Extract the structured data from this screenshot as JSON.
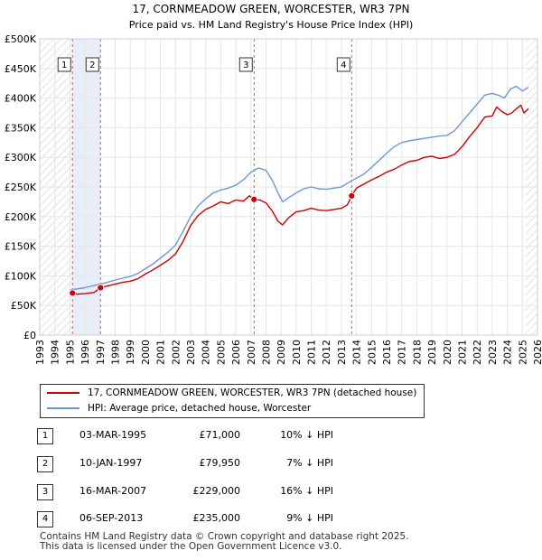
{
  "chart_data": {
    "type": "line",
    "title": "17, CORNMEADOW GREEN, WORCESTER, WR3 7PN",
    "subtitle": "Price paid vs. HM Land Registry's House Price Index (HPI)",
    "xlim": [
      1993,
      2026
    ],
    "ylim": [
      0,
      500000
    ],
    "y_ticks": [
      0,
      50000,
      100000,
      150000,
      200000,
      250000,
      300000,
      350000,
      400000,
      450000,
      500000
    ],
    "y_tick_labels": [
      "£0",
      "£50K",
      "£100K",
      "£150K",
      "£200K",
      "£250K",
      "£300K",
      "£350K",
      "£400K",
      "£450K",
      "£500K"
    ],
    "x_ticks": [
      1993,
      1994,
      1995,
      1996,
      1997,
      1998,
      1999,
      2000,
      2001,
      2002,
      2003,
      2004,
      2005,
      2006,
      2007,
      2008,
      2009,
      2010,
      2011,
      2012,
      2013,
      2014,
      2015,
      2016,
      2017,
      2018,
      2019,
      2020,
      2021,
      2022,
      2023,
      2024,
      2025,
      2026
    ],
    "x_tick_labels": [
      "1993",
      "1994",
      "1995",
      "1996",
      "1997",
      "1998",
      "1999",
      "2000",
      "2001",
      "2002",
      "2003",
      "2004",
      "2005",
      "2006",
      "2007",
      "2008",
      "2009",
      "2010",
      "2011",
      "2012",
      "2013",
      "2014",
      "2015",
      "2016",
      "2017",
      "2018",
      "2019",
      "2020",
      "2021",
      "2022",
      "2023",
      "2024",
      "2025",
      "2026"
    ],
    "shaded_ranges": [
      [
        1995.17,
        1997.03
      ]
    ],
    "hatched_ranges": [
      [
        1993,
        1995.17
      ],
      [
        2025.2,
        2026
      ]
    ],
    "series": [
      {
        "name": "17, CORNMEADOW GREEN, WORCESTER, WR3 7PN (detached house)",
        "color": "#cc0000",
        "x": [
          1995.17,
          1995.5,
          1996.0,
          1996.6,
          1997.03,
          1997.5,
          1998.0,
          1998.5,
          1999.0,
          1999.5,
          2000.0,
          2000.5,
          2001.0,
          2001.5,
          2002.0,
          2002.5,
          2003.0,
          2003.5,
          2004.0,
          2004.5,
          2005.0,
          2005.5,
          2006.0,
          2006.5,
          2006.9,
          2007.21,
          2007.6,
          2008.0,
          2008.4,
          2008.8,
          2009.1,
          2009.5,
          2010.0,
          2010.5,
          2011.0,
          2011.5,
          2012.0,
          2012.5,
          2013.0,
          2013.4,
          2013.68,
          2014.0,
          2014.5,
          2015.0,
          2015.5,
          2016.0,
          2016.5,
          2017.0,
          2017.5,
          2018.0,
          2018.5,
          2019.0,
          2019.5,
          2020.0,
          2020.5,
          2021.0,
          2021.5,
          2022.0,
          2022.5,
          2023.0,
          2023.3,
          2023.6,
          2024.0,
          2024.3,
          2024.6,
          2024.9,
          2025.1,
          2025.4
        ],
        "values": [
          71000,
          69000,
          70000,
          72000,
          79950,
          83000,
          86000,
          89000,
          91000,
          95000,
          103000,
          110000,
          118000,
          126000,
          137000,
          158000,
          185000,
          202000,
          212000,
          218000,
          225000,
          222000,
          228000,
          226000,
          235000,
          229000,
          228000,
          223000,
          210000,
          192000,
          186000,
          198000,
          208000,
          210000,
          214000,
          211000,
          210000,
          212000,
          214000,
          220000,
          235000,
          248000,
          255000,
          262000,
          268000,
          275000,
          280000,
          287000,
          293000,
          295000,
          300000,
          302000,
          298000,
          300000,
          305000,
          318000,
          335000,
          350000,
          368000,
          370000,
          385000,
          378000,
          372000,
          375000,
          382000,
          388000,
          375000,
          382000
        ]
      },
      {
        "name": "HPI: Average price, detached house, Worcester",
        "color": "#6a99d2",
        "x": [
          1995.0,
          1995.5,
          1996.0,
          1996.5,
          1997.0,
          1997.5,
          1998.0,
          1998.5,
          1999.0,
          1999.5,
          2000.0,
          2000.5,
          2001.0,
          2001.5,
          2002.0,
          2002.5,
          2003.0,
          2003.5,
          2004.0,
          2004.5,
          2005.0,
          2005.5,
          2006.0,
          2006.5,
          2007.0,
          2007.5,
          2008.0,
          2008.4,
          2008.8,
          2009.1,
          2009.5,
          2010.0,
          2010.5,
          2011.0,
          2011.5,
          2012.0,
          2012.5,
          2013.0,
          2013.5,
          2014.0,
          2014.5,
          2015.0,
          2015.5,
          2016.0,
          2016.5,
          2017.0,
          2017.5,
          2018.0,
          2018.5,
          2019.0,
          2019.5,
          2020.0,
          2020.5,
          2021.0,
          2021.5,
          2022.0,
          2022.5,
          2023.0,
          2023.4,
          2023.8,
          2024.2,
          2024.6,
          2025.0,
          2025.4
        ],
        "values": [
          76000,
          78000,
          80000,
          83000,
          86000,
          89000,
          93000,
          96000,
          99000,
          104000,
          112000,
          120000,
          130000,
          140000,
          152000,
          175000,
          200000,
          218000,
          230000,
          240000,
          245000,
          248000,
          253000,
          262000,
          275000,
          282000,
          278000,
          262000,
          240000,
          225000,
          232000,
          240000,
          247000,
          250000,
          247000,
          246000,
          248000,
          250000,
          258000,
          265000,
          272000,
          283000,
          295000,
          307000,
          318000,
          325000,
          328000,
          330000,
          332000,
          334000,
          336000,
          337000,
          345000,
          360000,
          375000,
          390000,
          405000,
          408000,
          405000,
          400000,
          415000,
          420000,
          412000,
          418000
        ]
      }
    ],
    "sale_markers": [
      {
        "label": "1",
        "x": 1995.17,
        "value": 71000
      },
      {
        "label": "2",
        "x": 1997.03,
        "value": 79950
      },
      {
        "label": "3",
        "x": 2007.21,
        "value": 229000
      },
      {
        "label": "4",
        "x": 2013.68,
        "value": 235000
      }
    ]
  },
  "legend": {
    "property_label": "17, CORNMEADOW GREEN, WORCESTER, WR3 7PN (detached house)",
    "hpi_label": "HPI: Average price, detached house, Worcester"
  },
  "sales": [
    {
      "num": "1",
      "date": "03-MAR-1995",
      "price": "£71,000",
      "hpi": "10% ↓ HPI"
    },
    {
      "num": "2",
      "date": "10-JAN-1997",
      "price": "£79,950",
      "hpi": "7% ↓ HPI"
    },
    {
      "num": "3",
      "date": "16-MAR-2007",
      "price": "£229,000",
      "hpi": "16% ↓ HPI"
    },
    {
      "num": "4",
      "date": "06-SEP-2013",
      "price": "£235,000",
      "hpi": "9% ↓ HPI"
    }
  ],
  "footer": {
    "line1": "Contains HM Land Registry data © Crown copyright and database right 2025.",
    "line2": "This data is licensed under the Open Government Licence v3.0."
  }
}
